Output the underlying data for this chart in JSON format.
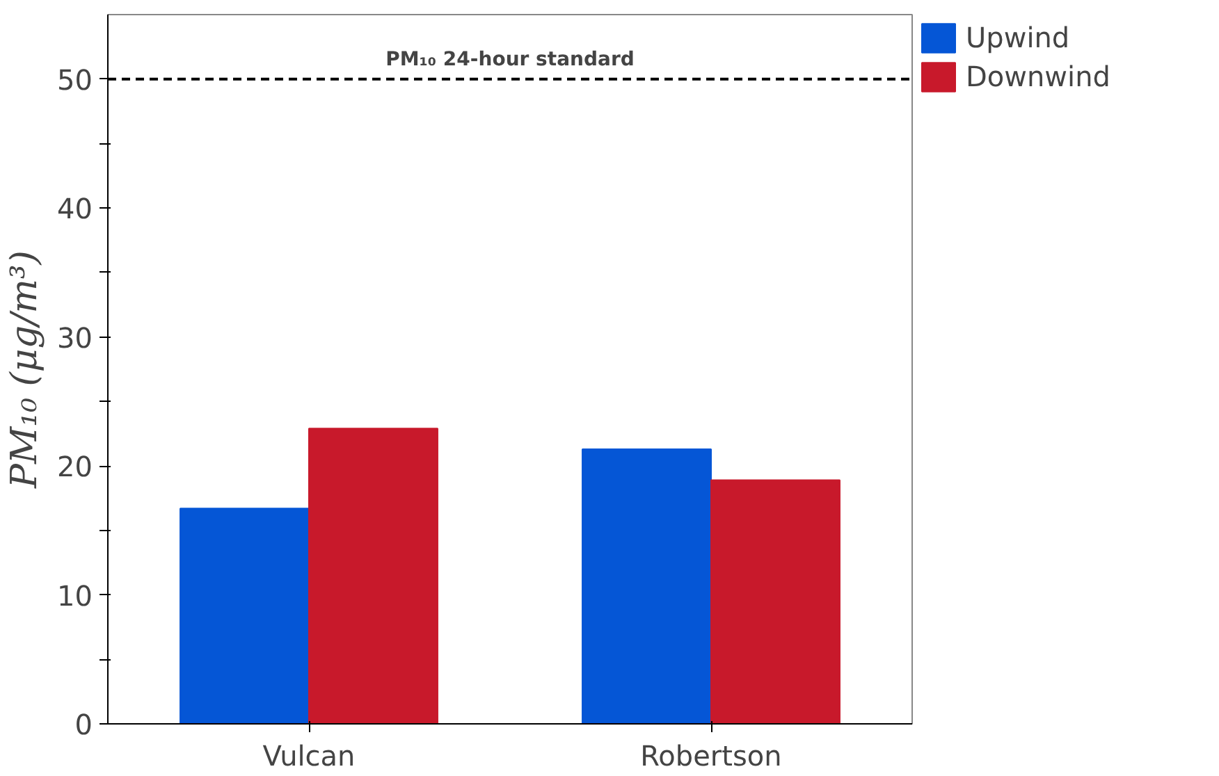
{
  "chart_data": {
    "type": "bar",
    "ylabel": "PM₁₀ (μg/m³)",
    "categories": [
      "Vulcan",
      "Robertson"
    ],
    "series": [
      {
        "name": "Upwind",
        "color": "#0556d6",
        "values": [
          16.7,
          21.3
        ]
      },
      {
        "name": "Downwind",
        "color": "#c8192b",
        "values": [
          22.9,
          18.9
        ]
      }
    ],
    "ylim": [
      0,
      55
    ],
    "yticks": [
      0,
      {
        "value": 5,
        "label": null
      },
      10,
      {
        "value": 15,
        "label": null
      },
      20,
      {
        "value": 25,
        "label": null
      },
      30,
      {
        "value": 35,
        "label": null
      },
      40,
      {
        "value": 45,
        "label": null
      },
      50
    ],
    "ref_lines": [
      {
        "axis": "y",
        "value": 50,
        "label": "PM₁₀ 24-hour standard",
        "color": "#000000",
        "line_style": "dashed"
      }
    ],
    "grid": false,
    "legend": "top right"
  }
}
